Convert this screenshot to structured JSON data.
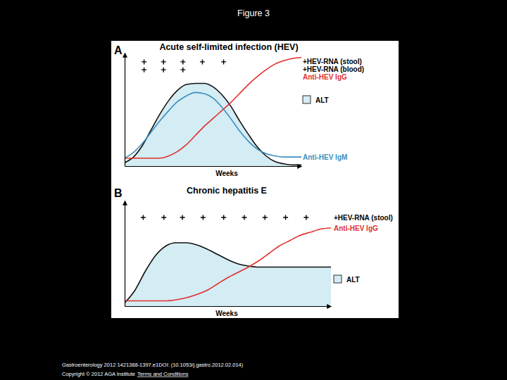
{
  "page": {
    "title": "Figure 3",
    "citation": "Gastroenterology 2012 1421388-1397.e1DOI: (10.1053/j.gastro.2012.02.014)",
    "copyright": "Copyright © 2012 AGA Institute",
    "link": "Terms and Conditions"
  },
  "chart_data": [
    {
      "type": "line",
      "title": "Acute self-limited infection (HEV)",
      "annotations": [
        "A"
      ],
      "x_label": "Weeks",
      "xlim": [
        0,
        10
      ],
      "ylim": [
        0,
        10
      ],
      "tick_labels": false,
      "grid": false,
      "x": [
        0,
        0.5,
        1,
        1.5,
        2,
        2.5,
        3,
        3.5,
        4,
        4.5,
        5,
        5.5,
        6,
        6.5,
        7,
        7.5,
        8,
        8.5,
        9,
        9.5,
        10
      ],
      "series": [
        {
          "name": "+HEV-RNA (stool)",
          "type": "scatter",
          "marker": "plus",
          "color": "#000000",
          "x": [
            1.1,
            2.2,
            3.3,
            4.4,
            5.6
          ],
          "values": [
            9.2,
            9.2,
            9.2,
            9.2,
            9.2
          ]
        },
        {
          "name": "+HEV-RNA (blood)",
          "type": "scatter",
          "marker": "plus",
          "color": "#000000",
          "x": [
            1.1,
            2.2,
            3.3
          ],
          "values": [
            8.5,
            8.5,
            8.5
          ]
        },
        {
          "name": "Anti-HEV IgG",
          "type": "line",
          "color": "#e0302e",
          "values": [
            0.7,
            0.7,
            0.7,
            0.7,
            0.7,
            0.9,
            1.3,
            1.9,
            2.7,
            3.5,
            4.2,
            4.9,
            5.6,
            6.4,
            7.2,
            7.9,
            8.5,
            9.0,
            9.3,
            9.5,
            9.6
          ]
        },
        {
          "name": "ALT",
          "type": "area",
          "color": "#d4ecf3",
          "values": [
            0.3,
            0.8,
            1.8,
            3.2,
            4.6,
            5.8,
            6.7,
            7.2,
            7.3,
            7.3,
            7.0,
            6.3,
            5.3,
            4.0,
            2.8,
            1.7,
            0.9,
            0.4,
            0.2,
            0.1,
            0.1
          ]
        },
        {
          "name": "Anti-HEV IgM",
          "type": "line",
          "color": "#3a8fc0",
          "values": [
            0.7,
            1.2,
            2.0,
            3.0,
            4.0,
            4.9,
            5.7,
            6.2,
            6.5,
            6.4,
            6.0,
            5.2,
            4.2,
            3.1,
            2.2,
            1.5,
            1.1,
            0.9,
            0.8,
            0.8,
            0.8
          ]
        }
      ]
    },
    {
      "type": "line",
      "title": "Chronic hepatitis E",
      "annotations": [
        "B"
      ],
      "x_label": "Weeks",
      "xlim": [
        0,
        10
      ],
      "ylim": [
        0,
        10
      ],
      "tick_labels": false,
      "grid": false,
      "x": [
        0,
        0.5,
        1,
        1.5,
        2,
        2.5,
        3,
        3.5,
        4,
        4.5,
        5,
        5.5,
        6,
        6.5,
        7,
        7.5,
        8,
        8.5,
        9,
        9.5,
        10
      ],
      "series": [
        {
          "name": "+HEV-RNA (stool)",
          "type": "scatter",
          "marker": "plus",
          "color": "#000000",
          "x": [
            0.9,
            1.9,
            2.8,
            3.8,
            4.8,
            5.8,
            6.8,
            7.8,
            8.8
          ],
          "values": [
            8.4,
            8.4,
            8.4,
            8.4,
            8.4,
            8.4,
            8.4,
            8.4,
            8.4
          ]
        },
        {
          "name": "Anti-HEV IgG",
          "type": "line",
          "color": "#e0302e",
          "values": [
            0.5,
            0.5,
            0.5,
            0.5,
            0.5,
            0.6,
            0.8,
            1.1,
            1.5,
            2.1,
            2.7,
            3.2,
            3.7,
            4.3,
            5.0,
            5.7,
            6.2,
            6.7,
            7.0,
            7.3,
            7.4
          ]
        },
        {
          "name": "ALT",
          "type": "area",
          "color": "#d4ecf3",
          "values": [
            0.3,
            1.5,
            3.3,
            4.8,
            5.7,
            6.0,
            6.0,
            5.8,
            5.4,
            4.9,
            4.4,
            4.0,
            3.8,
            3.7,
            3.7,
            3.7,
            3.7,
            3.7,
            3.7,
            3.7,
            3.7
          ]
        }
      ]
    }
  ]
}
